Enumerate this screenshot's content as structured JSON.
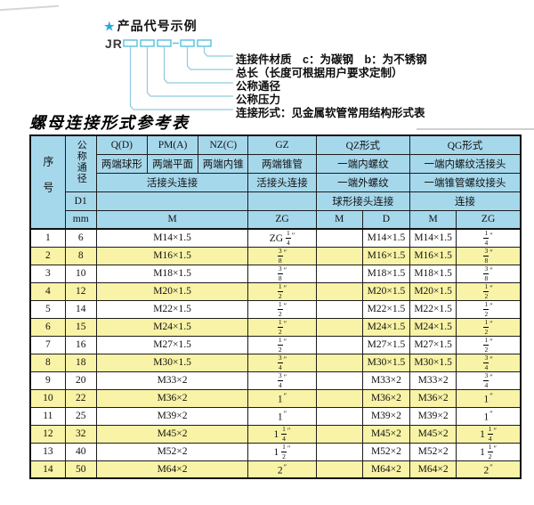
{
  "diagram": {
    "star": "★",
    "title": "产品代号示例",
    "code_prefix": "JR",
    "labels": [
      "连接件材质　c：为碳钢　b：为不锈钢",
      "总长（长度可根据用户要求定制）",
      "公称通径",
      "公称压力",
      "连接形式：见金属软管常用结构形式表"
    ]
  },
  "table_title": "螺母连接形式参考表",
  "colors": {
    "header_bg": "#a6d8ec",
    "row_alt_bg": "#f8f3a6",
    "accent_blue": "#29a8dc",
    "code_box_stroke": "#55c0e2",
    "connector_line": "#8fc9de"
  },
  "table": {
    "header": {
      "seq": "序号",
      "dn": "公称通径",
      "d1": "D1",
      "mm": "mm",
      "col_q": "Q(D)",
      "col_q_sub": "两端球形",
      "col_pm": "PM(A)",
      "col_pm_sub": "两端平面",
      "col_nz": "NZ(C)",
      "col_nz_sub": "两端内锥",
      "col_gz": "GZ",
      "col_gz_sub": "两端锥管",
      "col_qz": "QZ形式",
      "col_qz_sub1": "一端内螺纹",
      "col_qz_sub2": "一端外螺纹",
      "col_qz_sub3": "球形接头连接",
      "col_qg": "QG形式",
      "col_qg_sub1": "一端内螺纹活接头",
      "col_qg_sub2": "一端锥管螺纹接头",
      "col_qg_sub3": "连接",
      "union_joint": "活接头连接",
      "union_joint_gz": "活接头连接",
      "u_m1": "M",
      "u_zg1": "ZG",
      "u_m2": "M",
      "u_d": "D",
      "u_m3": "M",
      "u_zg2": "ZG"
    },
    "rows": [
      {
        "seq": "1",
        "mm": "6",
        "m": "M14×1.5",
        "zg": "ZG 1/4",
        "qz_m": "",
        "qz_d": "M14×1.5",
        "qg_m": "M14×1.5",
        "qg_zg": "1/4"
      },
      {
        "seq": "2",
        "mm": "8",
        "m": "M16×1.5",
        "zg": "3/8",
        "qz_m": "",
        "qz_d": "M16×1.5",
        "qg_m": "M16×1.5",
        "qg_zg": "3/8"
      },
      {
        "seq": "3",
        "mm": "10",
        "m": "M18×1.5",
        "zg": "3/8",
        "qz_m": "",
        "qz_d": "M18×1.5",
        "qg_m": "M18×1.5",
        "qg_zg": "3/8"
      },
      {
        "seq": "4",
        "mm": "12",
        "m": "M20×1.5",
        "zg": "1/2",
        "qz_m": "",
        "qz_d": "M20×1.5",
        "qg_m": "M20×1.5",
        "qg_zg": "1/2"
      },
      {
        "seq": "5",
        "mm": "14",
        "m": "M22×1.5",
        "zg": "1/2",
        "qz_m": "",
        "qz_d": "M22×1.5",
        "qg_m": "M22×1.5",
        "qg_zg": "1/2"
      },
      {
        "seq": "6",
        "mm": "15",
        "m": "M24×1.5",
        "zg": "1/2",
        "qz_m": "",
        "qz_d": "M24×1.5",
        "qg_m": "M24×1.5",
        "qg_zg": "1/2"
      },
      {
        "seq": "7",
        "mm": "16",
        "m": "M27×1.5",
        "zg": "1/2",
        "qz_m": "",
        "qz_d": "M27×1.5",
        "qg_m": "M27×1.5",
        "qg_zg": "1/2"
      },
      {
        "seq": "8",
        "mm": "18",
        "m": "M30×1.5",
        "zg": "3/4",
        "qz_m": "",
        "qz_d": "M30×1.5",
        "qg_m": "M30×1.5",
        "qg_zg": "3/4"
      },
      {
        "seq": "9",
        "mm": "20",
        "m": "M33×2",
        "zg": "3/4",
        "qz_m": "",
        "qz_d": "M33×2",
        "qg_m": "M33×2",
        "qg_zg": "3/4"
      },
      {
        "seq": "10",
        "mm": "22",
        "m": "M36×2",
        "zg": "1",
        "qz_m": "",
        "qz_d": "M36×2",
        "qg_m": "M36×2",
        "qg_zg": "1"
      },
      {
        "seq": "11",
        "mm": "25",
        "m": "M39×2",
        "zg": "1",
        "qz_m": "",
        "qz_d": "M39×2",
        "qg_m": "M39×2",
        "qg_zg": "1"
      },
      {
        "seq": "12",
        "mm": "32",
        "m": "M45×2",
        "zg": "1 1/4",
        "qz_m": "",
        "qz_d": "M45×2",
        "qg_m": "M45×2",
        "qg_zg": "1 1/4"
      },
      {
        "seq": "13",
        "mm": "40",
        "m": "M52×2",
        "zg": "1 1/2",
        "qz_m": "",
        "qz_d": "M52×2",
        "qg_m": "M52×2",
        "qg_zg": "1 1/2"
      },
      {
        "seq": "14",
        "mm": "50",
        "m": "M64×2",
        "zg": "2",
        "qz_m": "",
        "qz_d": "M64×2",
        "qg_m": "M64×2",
        "qg_zg": "2"
      }
    ]
  }
}
